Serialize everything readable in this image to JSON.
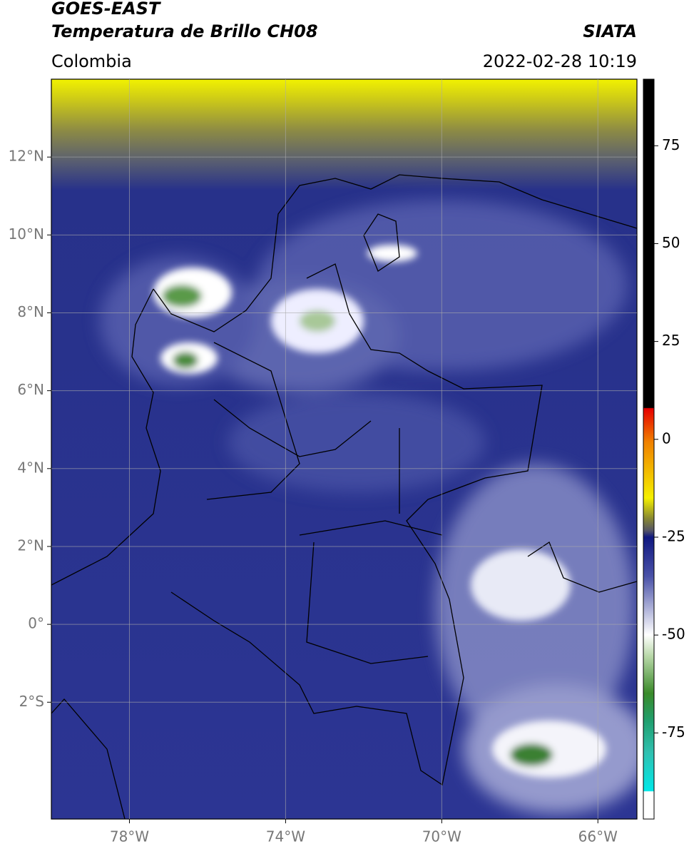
{
  "header": {
    "satellite": "GOES-EAST",
    "product": "Temperatura de Brillo CH08",
    "agency": "SIATA",
    "region": "Colombia",
    "datetime": "2022-02-28 10:19"
  },
  "map": {
    "xlim": [
      -80,
      -65
    ],
    "ylim": [
      -5,
      14
    ],
    "xticks": [
      {
        "value": -78,
        "label": "78°W"
      },
      {
        "value": -74,
        "label": "74°W"
      },
      {
        "value": -70,
        "label": "70°W"
      },
      {
        "value": -66,
        "label": "66°W"
      }
    ],
    "yticks": [
      {
        "value": 12,
        "label": "12°N"
      },
      {
        "value": 10,
        "label": "10°N"
      },
      {
        "value": 8,
        "label": "8°N"
      },
      {
        "value": 6,
        "label": "6°N"
      },
      {
        "value": 4,
        "label": "4°N"
      },
      {
        "value": 2,
        "label": "2°N"
      },
      {
        "value": 0,
        "label": "0°"
      },
      {
        "value": -2,
        "label": "2°S"
      }
    ],
    "grid": true
  },
  "colorbar": {
    "lim": [
      -97,
      92
    ],
    "ticks": [
      75,
      50,
      25,
      0,
      -25,
      -50,
      -75
    ]
  }
}
